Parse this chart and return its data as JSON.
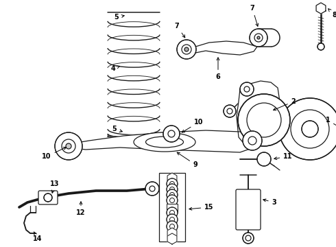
{
  "background_color": "#ffffff",
  "line_color": "#1a1a1a",
  "label_color": "#000000",
  "fig_width": 4.9,
  "fig_height": 3.6,
  "dpi": 100,
  "label_fontsize": 7.0,
  "label_fontweight": "bold",
  "lw": 0.9
}
